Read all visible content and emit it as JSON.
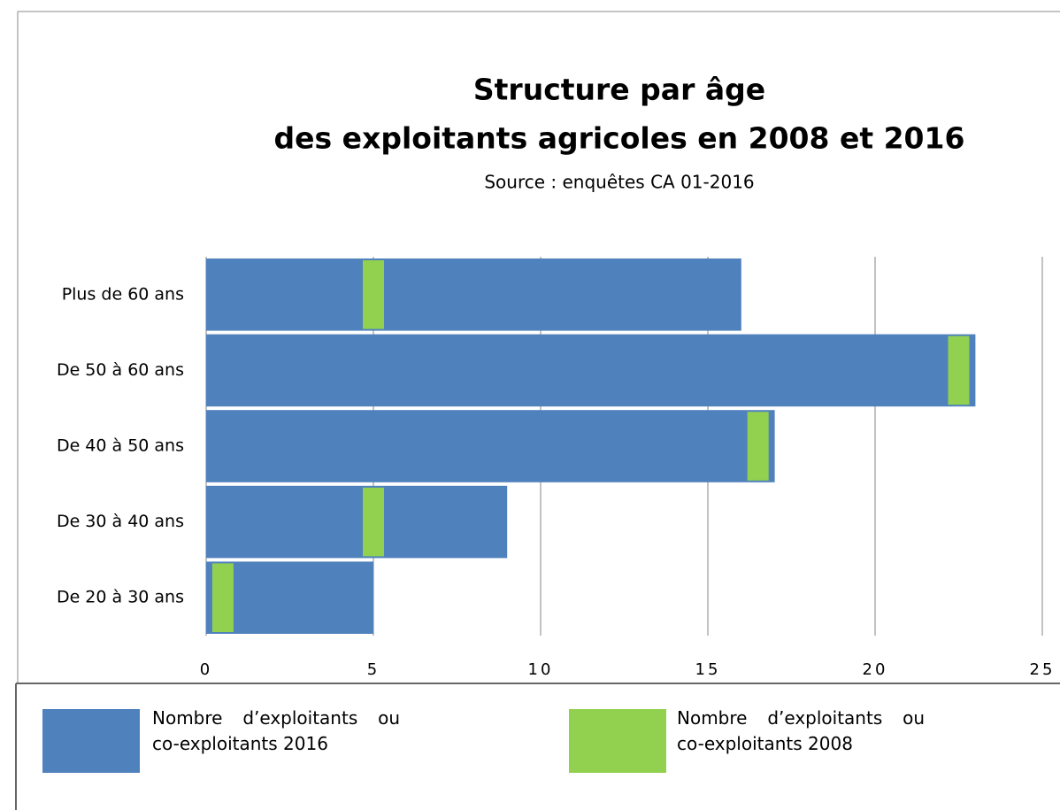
{
  "chart_data": {
    "type": "bar",
    "title": [
      "Structure par âge",
      "des exploitants agricoles en 2008 et 2016"
    ],
    "subtitle": "Source : enquêtes CA 01-2016",
    "categories": [
      "Plus de 60 ans",
      "De 50 à 60 ans",
      "De 40 à 50 ans",
      "De 30 à 40 ans",
      "De 20 à 30 ans"
    ],
    "series": [
      {
        "name": "Nombre d’exploitants ou co-exploitants 2016",
        "color": "#4f81bd",
        "values": [
          16,
          23,
          17,
          9,
          5
        ]
      },
      {
        "name": "Nombre d’exploitants ou co-exploitants 2008",
        "color": "#92d050",
        "values": [
          5,
          22.5,
          16.5,
          5,
          0.5
        ]
      }
    ],
    "xlim": [
      0,
      25
    ],
    "xticks": [
      0,
      5,
      10,
      15,
      20,
      25
    ],
    "grid": true
  }
}
